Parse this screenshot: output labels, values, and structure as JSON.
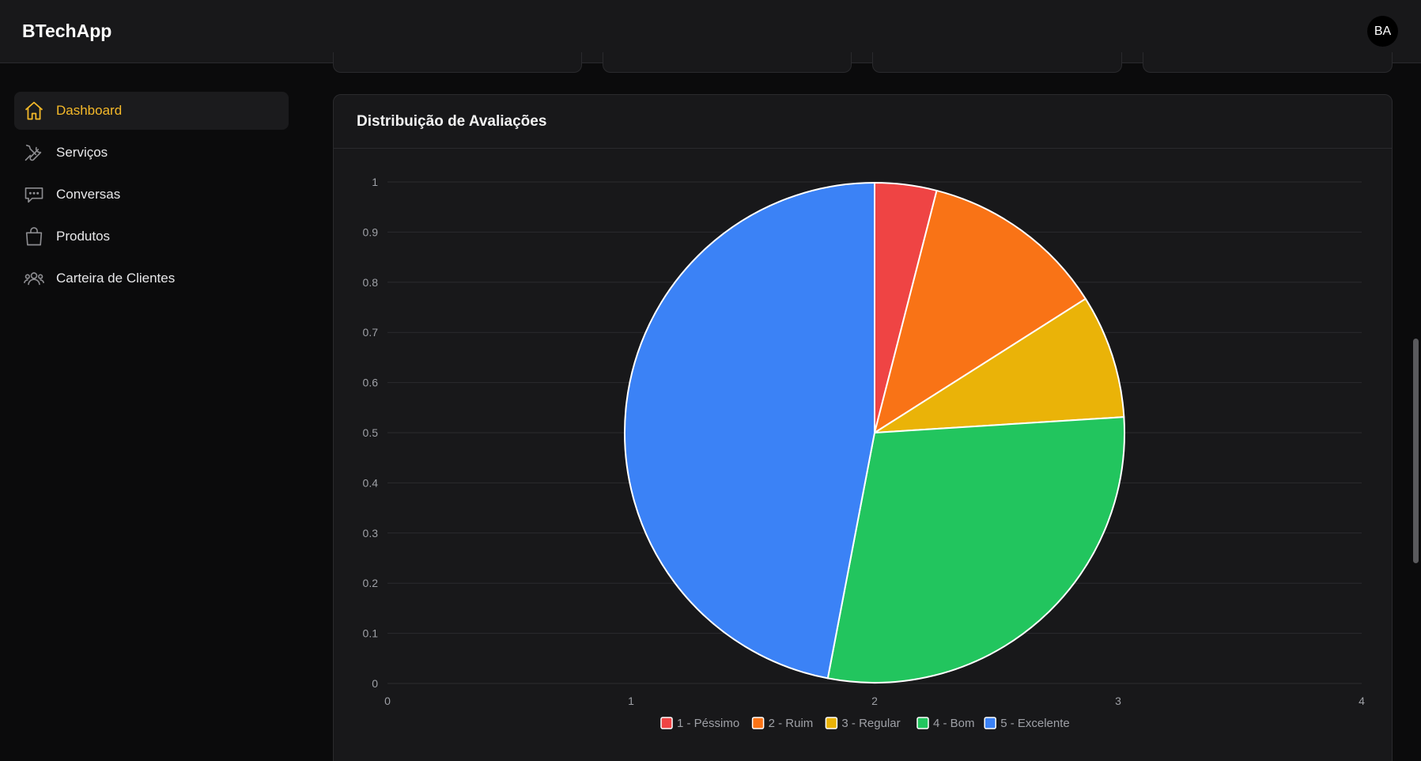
{
  "app": {
    "title": "BTechApp"
  },
  "user": {
    "initials": "BA"
  },
  "sidebar": {
    "items": [
      {
        "label": "Dashboard",
        "icon": "home-icon",
        "active": true
      },
      {
        "label": "Serviços",
        "icon": "tools-icon",
        "active": false
      },
      {
        "label": "Conversas",
        "icon": "chat-icon",
        "active": false
      },
      {
        "label": "Produtos",
        "icon": "bag-icon",
        "active": false
      },
      {
        "label": "Carteira de Clientes",
        "icon": "users-icon",
        "active": false
      }
    ]
  },
  "colors": {
    "accent": "#f5b929",
    "background": "#0b0b0c",
    "card": "#18181a"
  },
  "chart_card": {
    "title": "Distribuição de Avaliações"
  },
  "chart_data": {
    "type": "pie",
    "title": "Distribuição de Avaliações",
    "categories": [
      "1 - Péssimo",
      "2 - Ruim",
      "3 - Regular",
      "4 - Bom",
      "5 - Excelente"
    ],
    "values": [
      4,
      12,
      8,
      29,
      47
    ],
    "colors": [
      "#ef4444",
      "#f97316",
      "#eab308",
      "#22c55e",
      "#3b82f6"
    ],
    "xlim": [
      0,
      4
    ],
    "ylim": [
      0,
      1
    ],
    "x_ticks": [
      "0",
      "1",
      "2",
      "3",
      "4"
    ],
    "y_ticks": [
      "0",
      "0.1",
      "0.2",
      "0.3",
      "0.4",
      "0.5",
      "0.6",
      "0.7",
      "0.8",
      "0.9",
      "1"
    ],
    "grid": true,
    "legend_position": "bottom"
  }
}
